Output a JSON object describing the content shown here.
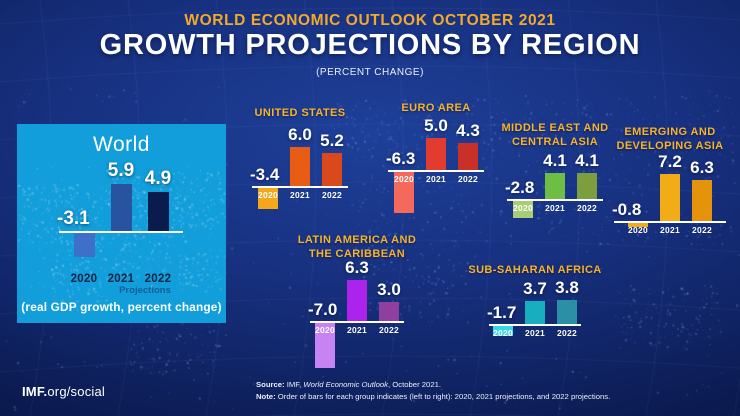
{
  "header": {
    "kicker": "WORLD ECONOMIC OUTLOOK OCTOBER 2021",
    "title": "GROWTH PROJECTIONS BY REGION",
    "subtitle": "(PERCENT CHANGE)"
  },
  "world_panel": {
    "title": "World",
    "years": [
      "2020",
      "2021",
      "2022"
    ],
    "labels": [
      "-3.1",
      "5.9",
      "4.9"
    ],
    "bar_colors": [
      "#3E70C9",
      "#28539E",
      "#0A1B4D"
    ],
    "projections_label": "Projections",
    "caption": "(real GDP growth, percent change)",
    "panel_bg": "#119EDB"
  },
  "charts": {
    "us": {
      "title_lines": [
        "UNITED STATES"
      ],
      "years": [
        "2020",
        "2021",
        "2022"
      ],
      "labels": [
        "-3.4",
        "6.0",
        "5.2"
      ],
      "colors": [
        "#F3A81B",
        "#E85C15",
        "#D9491C"
      ]
    },
    "euro": {
      "title_lines": [
        "EURO AREA"
      ],
      "years": [
        "2020",
        "2021",
        "2022"
      ],
      "labels": [
        "-6.3",
        "5.0",
        "4.3"
      ],
      "colors": [
        "#F4695C",
        "#E23B30",
        "#C93128"
      ]
    },
    "me": {
      "title_lines": [
        "MIDDLE EAST AND",
        "CENTRAL ASIA"
      ],
      "years": [
        "2020",
        "2021",
        "2022"
      ],
      "labels": [
        "-2.8",
        "4.1",
        "4.1"
      ],
      "colors": [
        "#A9CD74",
        "#6FBE44",
        "#7D9E3E"
      ]
    },
    "em_asia": {
      "title_lines": [
        "EMERGING AND",
        "DEVELOPING ASIA"
      ],
      "years": [
        "2020",
        "2021",
        "2022"
      ],
      "labels": [
        "-0.8",
        "7.2",
        "6.3"
      ],
      "colors": [
        "#F2AC18",
        "#F2AC18",
        "#E5930B"
      ]
    },
    "latam": {
      "title_lines": [
        "LATIN AMERICA AND",
        "THE CARIBBEAN"
      ],
      "years": [
        "2020",
        "2021",
        "2022"
      ],
      "labels": [
        "-7.0",
        "6.3",
        "3.0"
      ],
      "colors": [
        "#C883F2",
        "#AC23EC",
        "#8E3FA0"
      ]
    },
    "ssa": {
      "title_lines": [
        "SUB-SAHARAN AFRICA"
      ],
      "years": [
        "2020",
        "2021",
        "2022"
      ],
      "labels": [
        "-1.7",
        "3.7",
        "3.8"
      ],
      "colors": [
        "#35D6E6",
        "#17AEC0",
        "#2B8FA5"
      ]
    }
  },
  "footer": {
    "brand_bold": "IMF.",
    "brand_rest": "org/social",
    "source_label": "Source:",
    "source_text_pre": " IMF, ",
    "source_text_italic": "World Economic Outlook",
    "source_text_post": ", October 2021.",
    "note_label": "Note:",
    "note_text": " Order of bars for each group indicates (left to right): 2020, 2021 projections, and 2022 projections."
  },
  "colors": {
    "accent_gold": "#F7B32B",
    "axis_white": "#FFFFFF",
    "background_navy": "#12266B"
  },
  "chart_data": {
    "type": "bar",
    "categories": [
      "2020",
      "2021 projection",
      "2022 projection"
    ],
    "series": [
      {
        "name": "World",
        "values": [
          -3.1,
          5.9,
          4.9
        ]
      },
      {
        "name": "United States",
        "values": [
          -3.4,
          6.0,
          5.2
        ]
      },
      {
        "name": "Euro Area",
        "values": [
          -6.3,
          5.0,
          4.3
        ]
      },
      {
        "name": "Middle East and Central Asia",
        "values": [
          -2.8,
          4.1,
          4.1
        ]
      },
      {
        "name": "Emerging and Developing Asia",
        "values": [
          -0.8,
          7.2,
          6.3
        ]
      },
      {
        "name": "Latin America and the Caribbean",
        "values": [
          -7.0,
          6.3,
          3.0
        ]
      },
      {
        "name": "Sub-Saharan Africa",
        "values": [
          -1.7,
          3.7,
          3.8
        ]
      }
    ],
    "title": "Growth Projections by Region",
    "subtitle": "World Economic Outlook October 2021",
    "ylabel": "real GDP growth, percent change",
    "legend_position": "none",
    "grid": false
  }
}
